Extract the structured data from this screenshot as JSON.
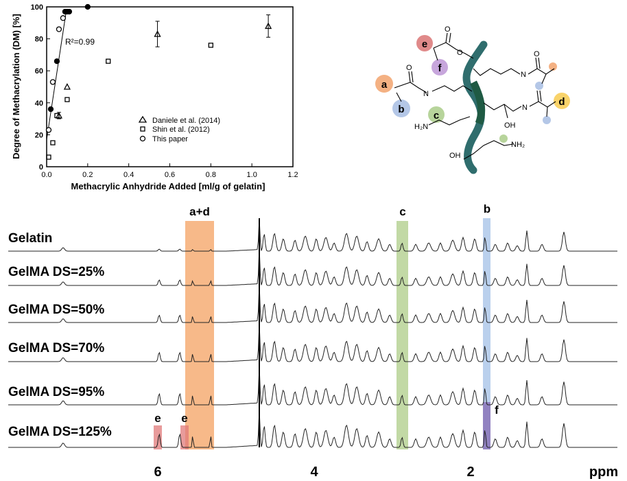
{
  "chart_data": [
    {
      "type": "scatter",
      "xlabel": "Methacrylic Anhydride Added [ml/g of gelatin]",
      "ylabel": "Degree of Methacrylation (DM) [%]",
      "xlim": [
        0,
        1.2
      ],
      "ylim": [
        0,
        100
      ],
      "x_ticks": [
        "0.0",
        "0.2",
        "0.4",
        "0.6",
        "0.8",
        "1.0",
        "1.2"
      ],
      "y_ticks": [
        "0",
        "20",
        "40",
        "60",
        "80",
        "100"
      ],
      "annotation": "R²=0.99",
      "legend_position": "bottom-right",
      "series": [
        {
          "name": "Daniele et al. (2014)",
          "marker": "triangle",
          "points": [
            {
              "x": 0.06,
              "y": 32,
              "err": 2
            },
            {
              "x": 0.1,
              "y": 50,
              "err": 0
            },
            {
              "x": 0.54,
              "y": 83,
              "err": 8
            },
            {
              "x": 1.08,
              "y": 88,
              "err": 7
            }
          ]
        },
        {
          "name": "Shin et al. (2012)",
          "marker": "square",
          "points": [
            {
              "x": 0.01,
              "y": 6
            },
            {
              "x": 0.03,
              "y": 15
            },
            {
              "x": 0.05,
              "y": 32
            },
            {
              "x": 0.1,
              "y": 42
            },
            {
              "x": 0.3,
              "y": 66
            },
            {
              "x": 0.8,
              "y": 76
            }
          ]
        },
        {
          "name": "This paper",
          "marker": "circle",
          "points": [
            {
              "x": 0.01,
              "y": 23,
              "filled": false
            },
            {
              "x": 0.02,
              "y": 36,
              "filled": true
            },
            {
              "x": 0.03,
              "y": 53,
              "filled": false
            },
            {
              "x": 0.05,
              "y": 66,
              "filled": true
            },
            {
              "x": 0.06,
              "y": 86,
              "filled": false
            },
            {
              "x": 0.08,
              "y": 93,
              "filled": false
            },
            {
              "x": 0.09,
              "y": 97,
              "filled": true
            },
            {
              "x": 0.1,
              "y": 97,
              "filled": true
            },
            {
              "x": 0.11,
              "y": 97,
              "filled": true
            },
            {
              "x": 0.2,
              "y": 100,
              "filled": true
            }
          ]
        }
      ],
      "fit_line": [
        {
          "x": 0.0,
          "y": 17
        },
        {
          "x": 0.095,
          "y": 97
        }
      ]
    },
    {
      "type": "line",
      "subtype": "stacked NMR spectra",
      "xlabel": "ppm",
      "x_ticks": [
        "6",
        "4",
        "2"
      ],
      "x_reversed": true,
      "series": [
        {
          "name": "Gelatin"
        },
        {
          "name": "GelMA DS=25%"
        },
        {
          "name": "GelMA DS=50%"
        },
        {
          "name": "GelMA DS=70%"
        },
        {
          "name": "GelMA DS=95%"
        },
        {
          "name": "GelMA DS=125%"
        }
      ],
      "highlights": [
        {
          "label": "a+d",
          "color": "#f4a261"
        },
        {
          "label": "c",
          "color": "#a8c97f"
        },
        {
          "label": "b",
          "color": "#a9c4e8"
        },
        {
          "label": "f",
          "color": "#9b86c4"
        },
        {
          "label": "e",
          "color": "#e07a7a"
        },
        {
          "label": "e",
          "color": "#e07a7a"
        }
      ]
    }
  ],
  "structure": {
    "labels": [
      "e",
      "f",
      "a",
      "b",
      "c",
      "d"
    ],
    "groups": [
      "N",
      "N",
      "N",
      "H₂N",
      "OH",
      "OH",
      "NH₂",
      "O",
      "O",
      "O",
      "O"
    ],
    "colors": {
      "e": "#e08a8a",
      "f": "#c7a6dc",
      "a": "#f4b183",
      "b": "#b4c7e7",
      "c": "#b7d49b",
      "d": "#f9d36a"
    }
  }
}
